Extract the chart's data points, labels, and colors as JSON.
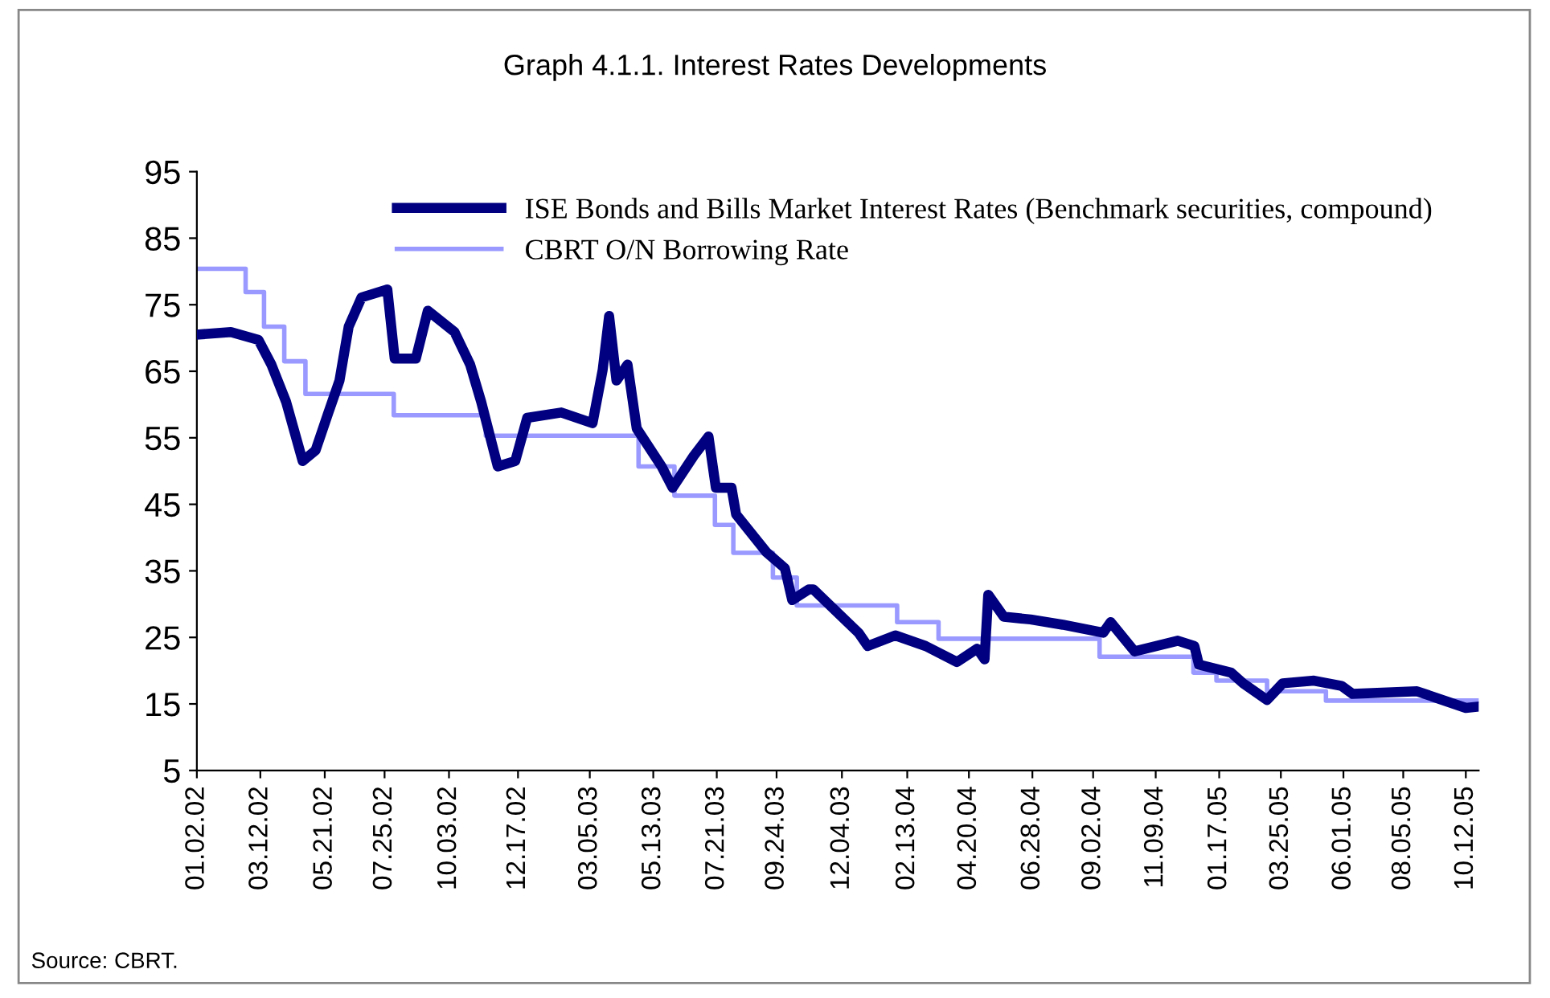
{
  "chart_data": {
    "type": "line",
    "title": "Graph 4.1.1. Interest Rates Developments",
    "annotations": [
      "Source: CBRT."
    ],
    "ylim": [
      5,
      95
    ],
    "yticks": [
      5,
      15,
      25,
      35,
      45,
      55,
      65,
      75,
      85,
      95
    ],
    "xlim": [
      "2002-01-02",
      "2005-10-26"
    ],
    "xticks": [
      {
        "value": "2002-01-02",
        "label": "01.02.02"
      },
      {
        "value": "2002-03-12",
        "label": "03.12.02"
      },
      {
        "value": "2002-05-21",
        "label": "05.21.02"
      },
      {
        "value": "2002-07-25",
        "label": "07.25.02"
      },
      {
        "value": "2002-10-03",
        "label": "10.03.02"
      },
      {
        "value": "2002-12-17",
        "label": "12.17.02"
      },
      {
        "value": "2003-03-05",
        "label": "03.05.03"
      },
      {
        "value": "2003-05-13",
        "label": "05.13.03"
      },
      {
        "value": "2003-07-21",
        "label": "07.21.03"
      },
      {
        "value": "2003-09-24",
        "label": "09.24.03"
      },
      {
        "value": "2003-12-04",
        "label": "12.04.03"
      },
      {
        "value": "2004-02-13",
        "label": "02.13.04"
      },
      {
        "value": "2004-04-20",
        "label": "04.20.04"
      },
      {
        "value": "2004-06-28",
        "label": "06.28.04"
      },
      {
        "value": "2004-09-02",
        "label": "09.02.04"
      },
      {
        "value": "2004-11-09",
        "label": "11.09.04"
      },
      {
        "value": "2005-01-17",
        "label": "01.17.05"
      },
      {
        "value": "2005-03-25",
        "label": "03.25.05"
      },
      {
        "value": "2005-06-01",
        "label": "06.01.05"
      },
      {
        "value": "2005-08-05",
        "label": "08.05.05"
      },
      {
        "value": "2005-10-12",
        "label": "10.12.05"
      }
    ],
    "legend": "top",
    "grid": false,
    "marker": "none",
    "line_style": "solid",
    "series": [
      {
        "name": "ISE Bonds and Bills Market Interest Rates (Benchmark securities, compound)",
        "color": "#000080",
        "x": [
          "2002-01-02",
          "2002-02-08",
          "2002-03-10",
          "2002-03-24",
          "2002-04-09",
          "2002-04-27",
          "2002-05-11",
          "2002-05-25",
          "2002-06-06",
          "2002-06-16",
          "2002-06-30",
          "2002-07-28",
          "2002-08-05",
          "2002-08-28",
          "2002-09-10",
          "2002-10-09",
          "2002-10-26",
          "2002-11-07",
          "2002-11-25",
          "2002-12-14",
          "2002-12-27",
          "2003-02-02",
          "2003-03-08",
          "2003-03-19",
          "2003-03-26",
          "2003-04-03",
          "2003-04-15",
          "2003-04-25",
          "2003-05-22",
          "2003-06-03",
          "2003-06-26",
          "2003-07-12",
          "2003-07-20",
          "2003-08-06",
          "2003-08-11",
          "2003-09-13",
          "2003-10-03",
          "2003-10-11",
          "2003-10-29",
          "2003-11-03",
          "2003-12-22",
          "2004-01-01",
          "2004-01-31",
          "2004-03-04",
          "2004-04-07",
          "2004-04-29",
          "2004-05-07",
          "2004-05-11",
          "2004-05-28",
          "2004-06-26",
          "2004-07-31",
          "2004-09-13",
          "2004-09-21",
          "2004-10-17",
          "2004-12-03",
          "2004-12-21",
          "2004-12-26",
          "2005-01-30",
          "2005-02-12",
          "2005-03-10",
          "2005-03-27",
          "2005-04-30",
          "2005-05-30",
          "2005-06-11",
          "2005-08-20",
          "2005-10-12",
          "2005-10-26"
        ],
        "values": [
          70.5,
          70.9,
          69.7,
          66.0,
          60.4,
          51.5,
          53.1,
          58.8,
          63.6,
          71.7,
          76.1,
          77.3,
          66.9,
          66.9,
          74.1,
          70.9,
          66.0,
          60.4,
          50.7,
          51.5,
          58.0,
          58.8,
          57.2,
          65.2,
          73.3,
          63.6,
          66.0,
          56.4,
          50.7,
          47.5,
          52.3,
          55.2,
          47.5,
          47.5,
          43.5,
          37.8,
          35.4,
          30.6,
          32.2,
          32.2,
          25.7,
          23.7,
          25.3,
          23.7,
          21.3,
          23.3,
          21.7,
          31.4,
          28.1,
          27.7,
          26.9,
          25.7,
          27.3,
          22.9,
          24.5,
          23.7,
          20.9,
          19.7,
          18.1,
          15.6,
          18.1,
          18.5,
          17.7,
          16.5,
          16.9,
          14.4,
          14.6
        ]
      },
      {
        "name": "CBRT O/N Borrowing Rate",
        "color": "#9999ff",
        "type": "step",
        "x": [
          "2002-01-02",
          "2002-02-24",
          "2002-03-16",
          "2002-04-07",
          "2002-04-30",
          "2002-08-04",
          "2002-11-12",
          "2003-04-27",
          "2003-06-05",
          "2003-07-19",
          "2003-08-08",
          "2003-09-20",
          "2003-10-16",
          "2004-02-02",
          "2004-03-18",
          "2004-09-09",
          "2004-12-20",
          "2005-01-14",
          "2005-03-10",
          "2005-05-13",
          "2005-10-26"
        ],
        "values": [
          80.4,
          76.9,
          71.7,
          66.5,
          61.6,
          58.4,
          55.3,
          50.7,
          46.3,
          41.9,
          37.7,
          34.0,
          29.8,
          27.3,
          24.8,
          22.1,
          19.7,
          18.5,
          16.9,
          15.5,
          15.5
        ]
      }
    ]
  }
}
